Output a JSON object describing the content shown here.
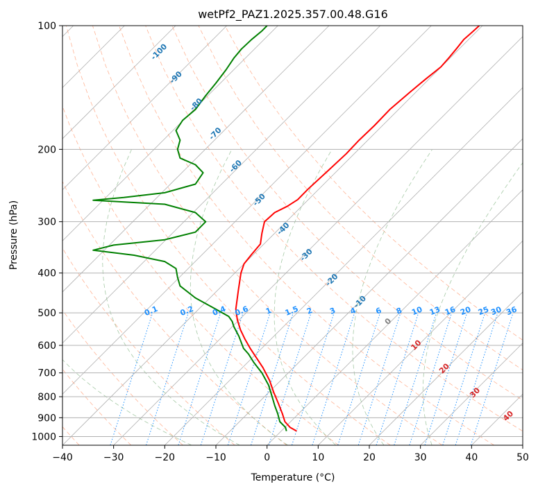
{
  "chart_data": {
    "type": "line",
    "title": "wetPf2_PAZ1.2025.357.00.48.G16",
    "xlabel": "Temperature (°C)",
    "ylabel": "Pressure (hPa)",
    "xlim": [
      -40,
      50
    ],
    "ylim": [
      1050,
      100
    ],
    "y_scale": "log",
    "grid": true,
    "x_ticks": [
      "−40",
      "−30",
      "−20",
      "−10",
      "0",
      "10",
      "20",
      "30",
      "40",
      "50"
    ],
    "y_ticks": [
      "100",
      "200",
      "300",
      "400",
      "500",
      "600",
      "700",
      "800",
      "900",
      "1000"
    ],
    "series": [
      {
        "color": "#ff0000",
        "points": [
          [
            5.8,
            970
          ],
          [
            4.5,
            950
          ],
          [
            3.5,
            920
          ],
          [
            3.0,
            880
          ],
          [
            2.2,
            830
          ],
          [
            1.3,
            780
          ],
          [
            0.5,
            730
          ],
          [
            -0.8,
            680
          ],
          [
            -2.2,
            640
          ],
          [
            -3.3,
            610
          ],
          [
            -4.3,
            580
          ],
          [
            -5.2,
            550
          ],
          [
            -5.8,
            520
          ],
          [
            -6.1,
            490
          ],
          [
            -5.6,
            440
          ],
          [
            -5.1,
            400
          ],
          [
            -4.5,
            380
          ],
          [
            -3.0,
            360
          ],
          [
            -1.3,
            340
          ],
          [
            -1.0,
            320
          ],
          [
            -0.5,
            300
          ],
          [
            1.5,
            285
          ],
          [
            4.0,
            275
          ],
          [
            6.0,
            265
          ],
          [
            8.0,
            250
          ],
          [
            12.0,
            225
          ],
          [
            15.5,
            205
          ],
          [
            18.0,
            190
          ],
          [
            21.0,
            175
          ],
          [
            24.0,
            160
          ],
          [
            28.0,
            145
          ],
          [
            31.0,
            135
          ],
          [
            34.0,
            126
          ],
          [
            35.5,
            120
          ],
          [
            37.0,
            114
          ],
          [
            38.5,
            108
          ],
          [
            40.0,
            104
          ],
          [
            41.5,
            100
          ]
        ]
      },
      {
        "color": "#008000",
        "points": [
          [
            3.8,
            970
          ],
          [
            3.6,
            950
          ],
          [
            2.5,
            920
          ],
          [
            2.1,
            880
          ],
          [
            1.5,
            840
          ],
          [
            1.0,
            800
          ],
          [
            0.3,
            750
          ],
          [
            -1.0,
            700
          ],
          [
            -2.6,
            660
          ],
          [
            -3.6,
            630
          ],
          [
            -4.6,
            610
          ],
          [
            -5.5,
            570
          ],
          [
            -6.5,
            540
          ],
          [
            -6.8,
            525
          ],
          [
            -7.5,
            510
          ],
          [
            -10.0,
            490
          ],
          [
            -14.0,
            460
          ],
          [
            -17.0,
            430
          ],
          [
            -17.5,
            410
          ],
          [
            -17.8,
            390
          ],
          [
            -20.0,
            375
          ],
          [
            -26.0,
            362
          ],
          [
            -34.0,
            352
          ],
          [
            -30.0,
            342
          ],
          [
            -20.0,
            332
          ],
          [
            -14.0,
            318
          ],
          [
            -12.0,
            300
          ],
          [
            -14.0,
            285
          ],
          [
            -20.0,
            272
          ],
          [
            -34.0,
            266
          ],
          [
            -28.0,
            262
          ],
          [
            -20.0,
            255
          ],
          [
            -14.0,
            243
          ],
          [
            -12.5,
            228
          ],
          [
            -14.0,
            218
          ],
          [
            -17.0,
            210
          ],
          [
            -17.5,
            200
          ],
          [
            -17.0,
            190
          ],
          [
            -17.8,
            180
          ],
          [
            -16.5,
            170
          ],
          [
            -14.0,
            160
          ],
          [
            -12.0,
            148
          ],
          [
            -10.0,
            138
          ],
          [
            -8.0,
            128
          ],
          [
            -6.5,
            120
          ],
          [
            -5.0,
            114
          ],
          [
            -3.0,
            108
          ],
          [
            -1.0,
            103
          ],
          [
            0.0,
            100
          ]
        ]
      }
    ],
    "annotations": {
      "dry_adiabats": [
        {
          "label": "-100",
          "x": -20.8,
          "p": 117,
          "color": "#1f77b4"
        },
        {
          "label": "-90",
          "x": -17.5,
          "p": 135,
          "color": "#1f77b4"
        },
        {
          "label": "-80",
          "x": -13.5,
          "p": 157,
          "color": "#1f77b4"
        },
        {
          "label": "-70",
          "x": -9.8,
          "p": 185,
          "color": "#1f77b4"
        },
        {
          "label": "-60",
          "x": -5.8,
          "p": 222,
          "color": "#1f77b4"
        },
        {
          "label": "-50",
          "x": -1.2,
          "p": 268,
          "color": "#1f77b4"
        },
        {
          "label": "-40",
          "x": 3.5,
          "p": 315,
          "color": "#1f77b4"
        },
        {
          "label": "-30",
          "x": 8.0,
          "p": 365,
          "color": "#1f77b4"
        },
        {
          "label": "-20",
          "x": 13.0,
          "p": 420,
          "color": "#1f77b4"
        },
        {
          "label": "-10",
          "x": 18.5,
          "p": 475,
          "color": "#1f77b4"
        },
        {
          "label": "0",
          "x": 24.0,
          "p": 530,
          "color": "#808080"
        },
        {
          "label": "10",
          "x": 29.5,
          "p": 605,
          "color": "#d62728"
        },
        {
          "label": "20",
          "x": 35.0,
          "p": 690,
          "color": "#d62728"
        },
        {
          "label": "30",
          "x": 41.0,
          "p": 790,
          "color": "#d62728"
        },
        {
          "label": "40",
          "x": 47.5,
          "p": 900,
          "color": "#d62728"
        }
      ],
      "mixing_ratios": [
        {
          "label": "0.1",
          "x": -22.5
        },
        {
          "label": "0.2",
          "x": -15.5
        },
        {
          "label": "0.4",
          "x": -9.2
        },
        {
          "label": "0.6",
          "x": -4.8
        },
        {
          "label": "1",
          "x": 0.5
        },
        {
          "label": "1.5",
          "x": 5.0
        },
        {
          "label": "2",
          "x": 8.5
        },
        {
          "label": "3",
          "x": 13.0
        },
        {
          "label": "4",
          "x": 17.0
        },
        {
          "label": "6",
          "x": 22.0
        },
        {
          "label": "8",
          "x": 26.0
        },
        {
          "label": "10",
          "x": 29.5
        },
        {
          "label": "13",
          "x": 33.0
        },
        {
          "label": "16",
          "x": 36.0
        },
        {
          "label": "20",
          "x": 39.0
        },
        {
          "label": "25",
          "x": 42.5
        },
        {
          "label": "30",
          "x": 45.0
        },
        {
          "label": "36",
          "x": 48.0
        }
      ],
      "mixing_ratio_color": "#1e90ff"
    }
  }
}
